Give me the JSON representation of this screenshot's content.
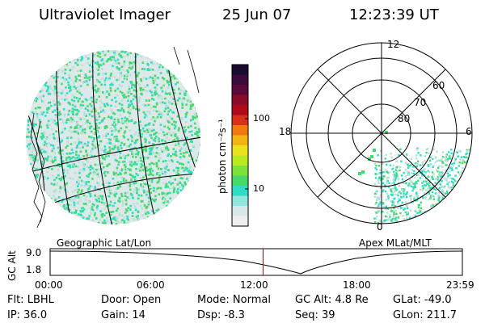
{
  "header": {
    "title": "Ultraviolet Imager",
    "date": "25 Jun 07",
    "time": "12:23:39 UT"
  },
  "geographic_panel": {
    "caption": "Geographic Lat/Lon"
  },
  "apex_panel": {
    "caption": "Apex  MLat/MLT",
    "mlt_labels": {
      "top": "12",
      "left": "18",
      "right": "6",
      "bottom": "0"
    },
    "lat_labels": [
      "60",
      "70",
      "80"
    ]
  },
  "colorbar": {
    "unit_label": "photon cm⁻²s⁻¹",
    "ticks": [
      "100",
      "10"
    ],
    "colors": [
      "#1a0a2e",
      "#3a0a3a",
      "#5a0a3a",
      "#8a0a2a",
      "#b00a1a",
      "#d6301a",
      "#f07a10",
      "#f3b312",
      "#e9e21c",
      "#b7ea1f",
      "#7ce23a",
      "#46d86c",
      "#2fdcc4",
      "#93e6e0",
      "#d9e7e9",
      "#eeeeee"
    ]
  },
  "altitude_plot": {
    "ylabel": "GC Alt",
    "yticks": [
      "9.0",
      "1.8"
    ],
    "xticks": [
      "00:00",
      "06:00",
      "12:00",
      "18:00",
      "23:59"
    ],
    "current_time_hours": 12.4,
    "marker_color": "#cc0000"
  },
  "info": {
    "row1": [
      "Flt:  LBHL",
      "Door:  Open",
      "Mode:  Normal",
      "GC Alt:  4.8 Re",
      "GLat:  -49.0"
    ],
    "row2": [
      "IP:  36.0",
      "Gain:  14",
      "Dsp:     -8.3",
      "Seq:  39",
      "GLon:  211.7"
    ]
  },
  "colors": {
    "emission_primary": "#46d86c",
    "emission_secondary": "#2fdcc4",
    "emission_faint": "#b8dfd8"
  }
}
